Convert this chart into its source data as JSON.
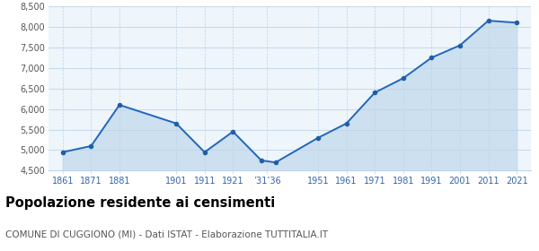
{
  "years": [
    1861,
    1871,
    1881,
    1901,
    1911,
    1921,
    1931,
    1936,
    1951,
    1961,
    1971,
    1981,
    1991,
    2001,
    2011,
    2021
  ],
  "values": [
    4950,
    5100,
    6100,
    5650,
    4950,
    5450,
    4750,
    4700,
    5300,
    5650,
    6400,
    6750,
    7250,
    7550,
    8150,
    8100
  ],
  "tick_years": [
    1861,
    1871,
    1881,
    1901,
    1911,
    1921,
    1933,
    1951,
    1961,
    1971,
    1981,
    1991,
    2001,
    2011,
    2021
  ],
  "tick_labels": [
    "1861",
    "1871",
    "1881",
    "1901",
    "1911",
    "1921",
    "’31’36",
    "1951",
    "1961",
    "1971",
    "1981",
    "1991",
    "2001",
    "2011",
    "2021"
  ],
  "ylim": [
    4500,
    8500
  ],
  "yticks": [
    4500,
    5000,
    5500,
    6000,
    6500,
    7000,
    7500,
    8000,
    8500
  ],
  "ytick_labels": [
    "4,500",
    "5,000",
    "5,500",
    "6,000",
    "6,500",
    "7,000",
    "7,500",
    "8,000",
    "8,500"
  ],
  "xlim": [
    1856,
    2026
  ],
  "line_color": "#2266bb",
  "fill_color": "#cce0f0",
  "marker_color": "#1f5fa6",
  "bg_color": "#eef5fb",
  "grid_color": "#c0d4e8",
  "title": "Popolazione residente ai censimenti",
  "subtitle": "COMUNE DI CUGGIONO (MI) - Dati ISTAT - Elaborazione TUTTITALIA.IT",
  "title_fontsize": 10.5,
  "subtitle_fontsize": 7.5,
  "tick_label_color": "#3366aa"
}
